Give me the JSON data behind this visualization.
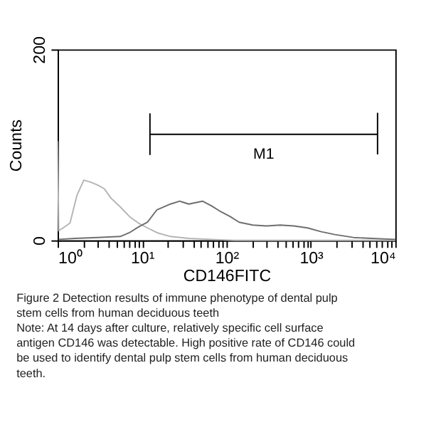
{
  "chart_data": {
    "type": "line",
    "xlabel": "CD146FITC",
    "ylabel": "Counts",
    "log": "x",
    "marker": "none",
    "line_style": "solid",
    "xlim": [
      1,
      10000
    ],
    "ylim": [
      0,
      200
    ],
    "xticks": [
      {
        "value": 1,
        "label": "10⁰"
      },
      {
        "value": 2,
        "label": null
      },
      {
        "value": 3,
        "label": null
      },
      {
        "value": 4,
        "label": null
      },
      {
        "value": 5,
        "label": null
      },
      {
        "value": 6,
        "label": null
      },
      {
        "value": 7,
        "label": null
      },
      {
        "value": 8,
        "label": null
      },
      {
        "value": 9,
        "label": null
      },
      {
        "value": 10,
        "label": "10¹"
      },
      {
        "value": 20,
        "label": null
      },
      {
        "value": 30,
        "label": null
      },
      {
        "value": 40,
        "label": null
      },
      {
        "value": 50,
        "label": null
      },
      {
        "value": 60,
        "label": null
      },
      {
        "value": 70,
        "label": null
      },
      {
        "value": 80,
        "label": null
      },
      {
        "value": 90,
        "label": null
      },
      {
        "value": 100,
        "label": "10²"
      },
      {
        "value": 200,
        "label": null
      },
      {
        "value": 300,
        "label": null
      },
      {
        "value": 400,
        "label": null
      },
      {
        "value": 500,
        "label": null
      },
      {
        "value": 600,
        "label": null
      },
      {
        "value": 700,
        "label": null
      },
      {
        "value": 800,
        "label": null
      },
      {
        "value": 900,
        "label": null
      },
      {
        "value": 1000,
        "label": "10³"
      },
      {
        "value": 2000,
        "label": null
      },
      {
        "value": 3000,
        "label": null
      },
      {
        "value": 4000,
        "label": null
      },
      {
        "value": 5000,
        "label": null
      },
      {
        "value": 6000,
        "label": null
      },
      {
        "value": 7000,
        "label": null
      },
      {
        "value": 8000,
        "label": null
      },
      {
        "value": 9000,
        "label": null
      },
      {
        "value": 10000,
        "label": "10⁴"
      }
    ],
    "yticks": [
      0,
      200
    ],
    "series": [
      {
        "color": "#b4b4b4",
        "x": [
          1,
          1.03,
          1.16,
          1.4,
          1.69,
          2.04,
          2.45,
          2.96,
          3.57,
          4.3,
          5.52,
          7.08,
          9.08,
          11.6,
          15.0,
          21.7,
          35.8,
          66.7,
          124,
          433,
          10000
        ],
        "values": [
          104,
          10,
          13,
          18,
          47,
          63,
          61,
          58,
          54,
          44,
          35,
          25,
          18,
          13,
          8,
          4,
          2,
          1,
          0,
          0,
          0
        ]
      },
      {
        "color": "#6e6e6e",
        "x": [
          1.03,
          1.59,
          2.96,
          5.52,
          7.08,
          9.08,
          11.6,
          15.0,
          21.7,
          27.9,
          35.8,
          52.0,
          66.7,
          85.6,
          110,
          141,
          205,
          298,
          433,
          629,
          914,
          1330,
          1930,
          3180,
          5230,
          10000
        ],
        "values": [
          1,
          2,
          3,
          4,
          8,
          14,
          19,
          32,
          38,
          41,
          38,
          41,
          36,
          30,
          25,
          19,
          16,
          15,
          16,
          15,
          13,
          9,
          6,
          3,
          2,
          1
        ]
      },
      {
        "color": "#000000",
        "x": [
          12.4,
          12.4,
          12.4,
          6160,
          6160,
          6160
        ],
        "values": [
          133,
          90,
          111,
          111,
          133,
          90
        ]
      }
    ],
    "annotations": [
      "M1",
      "Figure 2   Detection results of immune phenotype of dental pulp stem cells from human deciduous teeth",
      "Note: At 14 days after culture, relatively specific cell surface antigen CD146 was detectable. High positive rate of CD146 could be used to identify dental pulp stem cells from human deciduous teeth."
    ]
  }
}
